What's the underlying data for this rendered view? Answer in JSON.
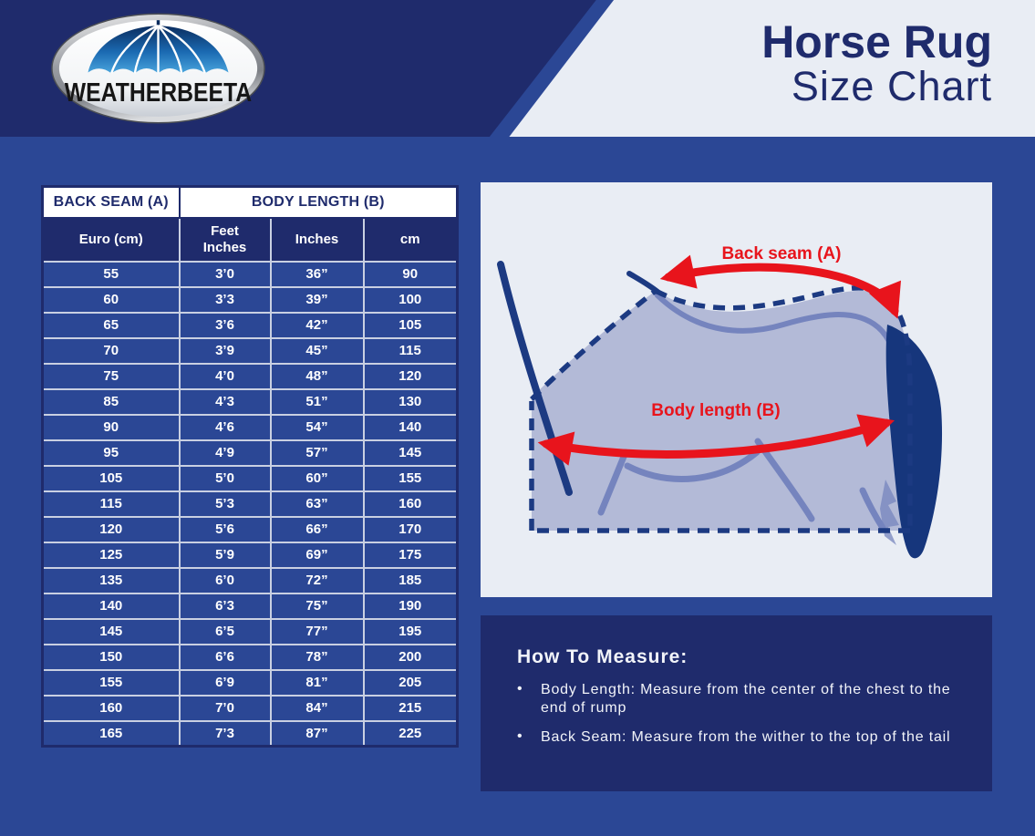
{
  "header": {
    "logo_text": "WEATHERBEETA",
    "title_line1": "Horse Rug",
    "title_line2": "Size Chart"
  },
  "chart_data": {
    "type": "table",
    "title": "Horse Rug Size Chart",
    "group_headers": [
      {
        "label": "BACK SEAM (A)",
        "colspan": 1
      },
      {
        "label": "BODY LENGTH (B)",
        "colspan": 3
      }
    ],
    "columns": [
      "Euro (cm)",
      "Feet Inches",
      "Inches",
      "cm"
    ],
    "rows": [
      [
        "55",
        "3’0",
        "36”",
        "90"
      ],
      [
        "60",
        "3’3",
        "39”",
        "100"
      ],
      [
        "65",
        "3’6",
        "42”",
        "105"
      ],
      [
        "70",
        "3’9",
        "45”",
        "115"
      ],
      [
        "75",
        "4’0",
        "48”",
        "120"
      ],
      [
        "85",
        "4’3",
        "51”",
        "130"
      ],
      [
        "90",
        "4’6",
        "54”",
        "140"
      ],
      [
        "95",
        "4’9",
        "57”",
        "145"
      ],
      [
        "105",
        "5’0",
        "60”",
        "155"
      ],
      [
        "115",
        "5’3",
        "63”",
        "160"
      ],
      [
        "120",
        "5’6",
        "66”",
        "170"
      ],
      [
        "125",
        "5’9",
        "69”",
        "175"
      ],
      [
        "135",
        "6’0",
        "72”",
        "185"
      ],
      [
        "140",
        "6’3",
        "75”",
        "190"
      ],
      [
        "145",
        "6’5",
        "77”",
        "195"
      ],
      [
        "150",
        "6’6",
        "78”",
        "200"
      ],
      [
        "155",
        "6’9",
        "81”",
        "205"
      ],
      [
        "160",
        "7’0",
        "84”",
        "215"
      ],
      [
        "165",
        "7’3",
        "87”",
        "225"
      ]
    ]
  },
  "diagram": {
    "back_seam_label": "Back seam (A)",
    "body_length_label": "Body length (B)"
  },
  "how_to_measure": {
    "heading": "How To Measure:",
    "bullet_char": "•",
    "bullets": [
      "Body Length: Measure from the center of the chest to the end of rump",
      "Back Seam: Measure from the wither to the top of the tail"
    ]
  },
  "colors": {
    "navy": "#1f2b6c",
    "royal": "#2b4795",
    "light": "#e9edf4",
    "red": "#e8141c",
    "table_border": "#c9d0e2",
    "horse_fill": "#b3bad7",
    "horse_stroke": "#7584be",
    "diagram_navy": "#1c3a82",
    "tail_navy": "#16367c"
  }
}
